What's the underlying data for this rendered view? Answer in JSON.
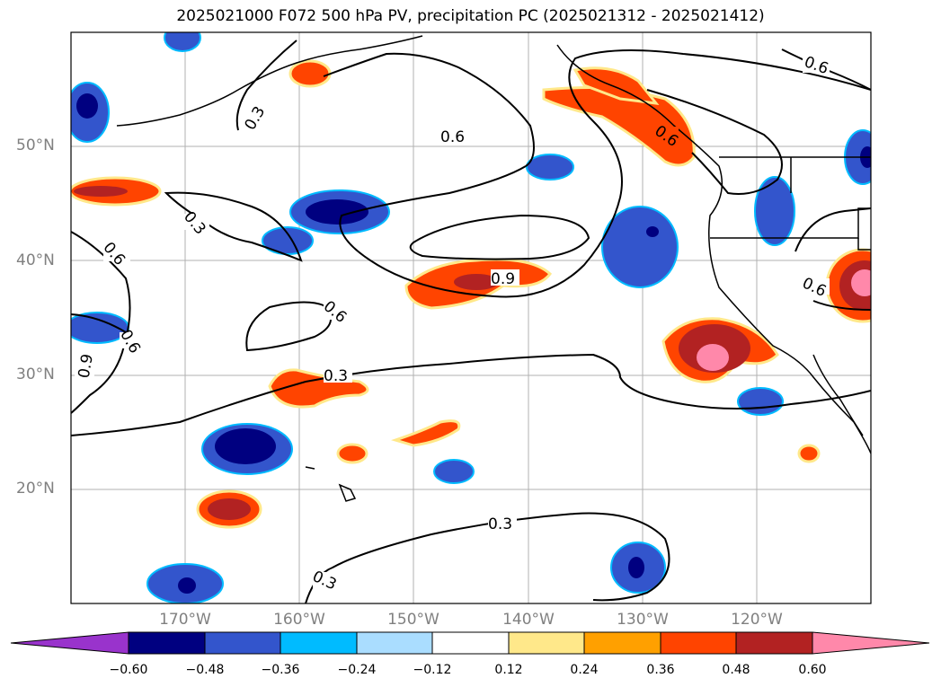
{
  "title": "2025021000 F072 500 hPa PV, precipitation PC (2025021312 - 2025021412)",
  "lat_labels": [
    "50°N",
    "40°N",
    "30°N",
    "20°N"
  ],
  "lon_labels": [
    "170°W",
    "160°W",
    "150°W",
    "140°W",
    "130°W",
    "120°W"
  ],
  "contour_labels": {
    "a": "0.3",
    "b": "0.6",
    "c": "0.6",
    "d": "0.3",
    "e": "0.6",
    "f": "0.9",
    "g": "0.6",
    "h": "0.6",
    "i": "0.9",
    "j": "0.3",
    "k": "0.6",
    "l": "0.3",
    "m": "0.3",
    "n": "0.6"
  },
  "colorbar": {
    "ticks": [
      "−0.60",
      "−0.48",
      "−0.36",
      "−0.24",
      "−0.12",
      "0.12",
      "0.24",
      "0.36",
      "0.48",
      "0.60"
    ],
    "colors": [
      "#9933cc",
      "#000080",
      "#3355cc",
      "#00bbff",
      "#aaddff",
      "#ffffff",
      "#ffe88a",
      "#ffa000",
      "#ff4400",
      "#b22222",
      "#ff88aa"
    ]
  }
}
